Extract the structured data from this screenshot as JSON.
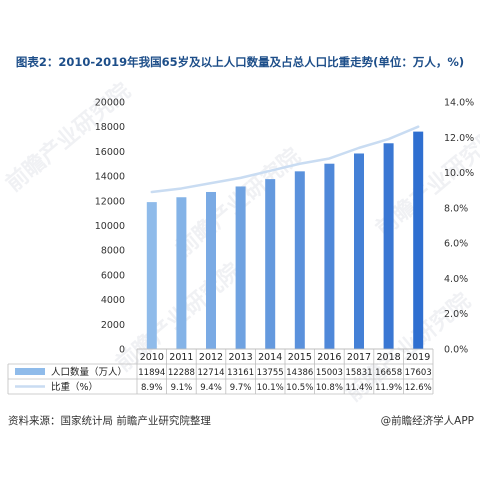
{
  "title": "图表2：2010-2019年我国65岁及以上人口数量及占总人口比重走势(单位：万人，%)",
  "source": "资料来源：国家统计局 前瞻产业研究院整理",
  "brand": "@前瞻经济学人APP",
  "watermark": "前瞻产业研究院",
  "colors": {
    "bar_light": "#8fbbea",
    "bar_dark": "#2f6fd0",
    "line": "#c9dcf2",
    "title": "#1d4e89"
  },
  "chart_data": {
    "type": "bar",
    "categories": [
      "2010",
      "2011",
      "2012",
      "2013",
      "2014",
      "2015",
      "2016",
      "2017",
      "2018",
      "2019"
    ],
    "series": [
      {
        "name": "人口数量（万人）",
        "type": "bar",
        "axis": "left",
        "values": [
          11894,
          12288,
          12714,
          13161,
          13755,
          14386,
          15003,
          15831,
          16658,
          17603
        ],
        "labels": [
          "11894",
          "12288",
          "12714",
          "13161",
          "13755",
          "14386",
          "15003",
          "15831",
          "16658",
          "17603"
        ]
      },
      {
        "name": "比重（%）",
        "type": "line",
        "axis": "right",
        "values": [
          8.9,
          9.1,
          9.4,
          9.7,
          10.1,
          10.5,
          10.8,
          11.4,
          11.9,
          12.6
        ],
        "labels": [
          "8.9%",
          "9.1%",
          "9.4%",
          "9.7%",
          "10.1%",
          "10.5%",
          "10.8%",
          "11.4%",
          "11.9%",
          "12.6%"
        ]
      }
    ],
    "ylim_left": [
      0,
      20000
    ],
    "yticks_left": [
      "0",
      "2000",
      "4000",
      "6000",
      "8000",
      "10000",
      "12000",
      "14000",
      "16000",
      "18000",
      "20000"
    ],
    "ylim_right": [
      0,
      14
    ],
    "yticks_right": [
      "0.0%",
      "2.0%",
      "4.0%",
      "6.0%",
      "8.0%",
      "10.0%",
      "12.0%",
      "14.0%"
    ],
    "grid": false,
    "legend": "data-table-below"
  }
}
